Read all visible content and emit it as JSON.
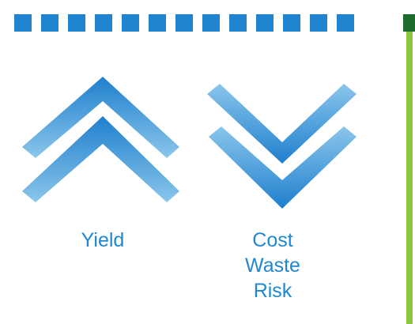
{
  "colors": {
    "dash_blue": "#1f83cf",
    "chevron_light": "#8ac6eb",
    "chevron_dark": "#1f7fcd",
    "label_blue": "#1f87d0",
    "green_line": "#8dc641",
    "green_dark": "#1c6b2b"
  },
  "dash_count": 13,
  "indicators": {
    "up": {
      "direction": "up",
      "labels": [
        "Yield"
      ]
    },
    "down": {
      "direction": "down",
      "labels": [
        "Cost",
        "Waste",
        "Risk"
      ]
    }
  }
}
